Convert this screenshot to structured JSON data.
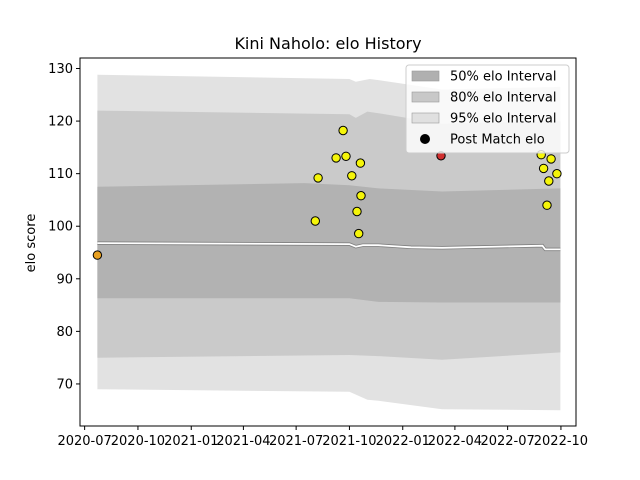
{
  "chart_data": {
    "type": "scatter",
    "title": "Kini Naholo: elo History",
    "xlabel": "",
    "ylabel": "elo score",
    "xlim": [
      "2020-06-23",
      "2022-10-27"
    ],
    "ylim": [
      62,
      132
    ],
    "x_ticks": [
      "2020-07",
      "2020-10",
      "2021-01",
      "2021-04",
      "2021-07",
      "2021-10",
      "2022-01",
      "2022-04",
      "2022-07",
      "2022-10"
    ],
    "y_ticks": [
      70,
      80,
      90,
      100,
      110,
      120,
      130
    ],
    "grid": false,
    "legend": {
      "location": "upper-right",
      "entries": [
        {
          "label": "50% elo Interval",
          "color": "#b0b0b0"
        },
        {
          "label": "80% elo Interval",
          "color": "#c8c8c8"
        },
        {
          "label": "95% elo Interval",
          "color": "#e0e0e0"
        },
        {
          "label": "Post Match elo",
          "color": "#000000"
        }
      ]
    },
    "mean_line": [
      {
        "x": "2020-07-23",
        "y": 96.8
      },
      {
        "x": "2021-10-01",
        "y": 96.6
      },
      {
        "x": "2021-10-12",
        "y": 96.1
      },
      {
        "x": "2021-10-24",
        "y": 96.4
      },
      {
        "x": "2021-11-20",
        "y": 96.4
      },
      {
        "x": "2022-01-15",
        "y": 96.0
      },
      {
        "x": "2022-03-10",
        "y": 95.9
      },
      {
        "x": "2022-08-30",
        "y": 96.3
      },
      {
        "x": "2022-09-04",
        "y": 95.6
      },
      {
        "x": "2022-09-30",
        "y": 95.6
      }
    ],
    "bands": [
      {
        "name": "95% elo Interval",
        "color": "#e0e0e0",
        "upper": [
          {
            "x": "2020-07-23",
            "y": 128.8
          },
          {
            "x": "2021-10-01",
            "y": 128.0
          },
          {
            "x": "2021-10-12",
            "y": 127.5
          },
          {
            "x": "2021-11-05",
            "y": 128.0
          },
          {
            "x": "2021-11-20",
            "y": 127.8
          },
          {
            "x": "2022-03-10",
            "y": 126.0
          },
          {
            "x": "2022-09-30",
            "y": 126.5
          }
        ],
        "lower": [
          {
            "x": "2020-07-23",
            "y": 69.0
          },
          {
            "x": "2021-10-01",
            "y": 68.5
          },
          {
            "x": "2021-11-01",
            "y": 67.0
          },
          {
            "x": "2021-11-20",
            "y": 66.8
          },
          {
            "x": "2022-03-10",
            "y": 65.2
          },
          {
            "x": "2022-09-30",
            "y": 65.0
          }
        ]
      },
      {
        "name": "80% elo Interval",
        "color": "#c8c8c8",
        "upper": [
          {
            "x": "2020-07-23",
            "y": 122.0
          },
          {
            "x": "2021-10-01",
            "y": 121.3
          },
          {
            "x": "2021-10-12",
            "y": 120.6
          },
          {
            "x": "2021-11-01",
            "y": 121.8
          },
          {
            "x": "2021-11-20",
            "y": 121.5
          },
          {
            "x": "2022-03-10",
            "y": 119.5
          },
          {
            "x": "2022-09-30",
            "y": 120.0
          }
        ],
        "lower": [
          {
            "x": "2020-07-23",
            "y": 75.0
          },
          {
            "x": "2021-10-01",
            "y": 75.5
          },
          {
            "x": "2021-11-20",
            "y": 75.3
          },
          {
            "x": "2022-03-10",
            "y": 74.6
          },
          {
            "x": "2022-08-30",
            "y": 75.8
          },
          {
            "x": "2022-09-30",
            "y": 76.0
          }
        ]
      },
      {
        "name": "50% elo Interval",
        "color": "#b0b0b0",
        "upper": [
          {
            "x": "2020-07-23",
            "y": 107.5
          },
          {
            "x": "2021-07-15",
            "y": 108.2
          },
          {
            "x": "2021-10-01",
            "y": 107.8
          },
          {
            "x": "2021-11-20",
            "y": 107.2
          },
          {
            "x": "2022-03-10",
            "y": 106.6
          },
          {
            "x": "2022-09-30",
            "y": 107.2
          }
        ],
        "lower": [
          {
            "x": "2020-07-23",
            "y": 86.3
          },
          {
            "x": "2021-10-01",
            "y": 86.3
          },
          {
            "x": "2021-11-20",
            "y": 85.6
          },
          {
            "x": "2022-03-10",
            "y": 85.5
          },
          {
            "x": "2022-09-30",
            "y": 85.5
          }
        ]
      }
    ],
    "points": [
      {
        "x": "2020-07-23",
        "y": 94.5,
        "color": "#e8a020"
      },
      {
        "x": "2021-08-03",
        "y": 101.0,
        "color": "#f5f50a"
      },
      {
        "x": "2021-08-08",
        "y": 109.2,
        "color": "#f5f50a"
      },
      {
        "x": "2021-09-08",
        "y": 113.0,
        "color": "#f5f50a"
      },
      {
        "x": "2021-09-20",
        "y": 118.2,
        "color": "#f5f50a"
      },
      {
        "x": "2021-09-25",
        "y": 113.3,
        "color": "#f5f50a"
      },
      {
        "x": "2021-10-05",
        "y": 109.6,
        "color": "#f5f50a"
      },
      {
        "x": "2021-10-14",
        "y": 102.8,
        "color": "#f5f50a"
      },
      {
        "x": "2021-10-17",
        "y": 98.6,
        "color": "#f5f50a"
      },
      {
        "x": "2021-10-20",
        "y": 112.0,
        "color": "#f5f50a"
      },
      {
        "x": "2021-10-21",
        "y": 105.8,
        "color": "#f5f50a"
      },
      {
        "x": "2022-03-08",
        "y": 113.4,
        "color": "#d03030"
      },
      {
        "x": "2022-08-28",
        "y": 113.6,
        "color": "#f5f50a"
      },
      {
        "x": "2022-09-01",
        "y": 111.0,
        "color": "#f5f50a"
      },
      {
        "x": "2022-09-07",
        "y": 104.0,
        "color": "#f5f50a"
      },
      {
        "x": "2022-09-10",
        "y": 108.6,
        "color": "#f5f50a"
      },
      {
        "x": "2022-09-14",
        "y": 112.8,
        "color": "#f5f50a"
      },
      {
        "x": "2022-09-24",
        "y": 110.0,
        "color": "#f5f50a"
      }
    ]
  }
}
